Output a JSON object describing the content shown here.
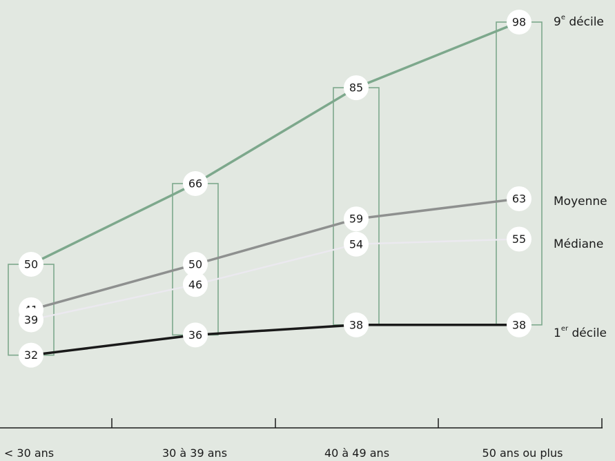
{
  "colors": {
    "background": "#e2e8e1",
    "decile9": "#7da88c",
    "moyenne": "#8e908f",
    "mediane": "#ebe9ef",
    "decile1": "#1a1a1a",
    "box": "#7da88c",
    "axis": "#1a1a1a"
  },
  "chart_data": {
    "type": "line",
    "categories": [
      "< 30 ans",
      "30 à 39 ans",
      "40 à 49 ans",
      "50 ans ou plus"
    ],
    "series": [
      {
        "key": "decile9",
        "name_main": "9",
        "name_sup": "e",
        "name_rest": " décile",
        "values": [
          50,
          66,
          85,
          98
        ]
      },
      {
        "key": "moyenne",
        "name_main": "Moyenne",
        "name_sup": "",
        "name_rest": "",
        "values": [
          41,
          50,
          59,
          63
        ]
      },
      {
        "key": "mediane",
        "name_main": "Médiane",
        "name_sup": "",
        "name_rest": "",
        "values": [
          39,
          46,
          54,
          55
        ]
      },
      {
        "key": "decile1",
        "name_main": "1",
        "name_sup": "er",
        "name_rest": " décile",
        "values": [
          32,
          36,
          38,
          38
        ]
      }
    ],
    "grid": false,
    "legend": "right"
  }
}
